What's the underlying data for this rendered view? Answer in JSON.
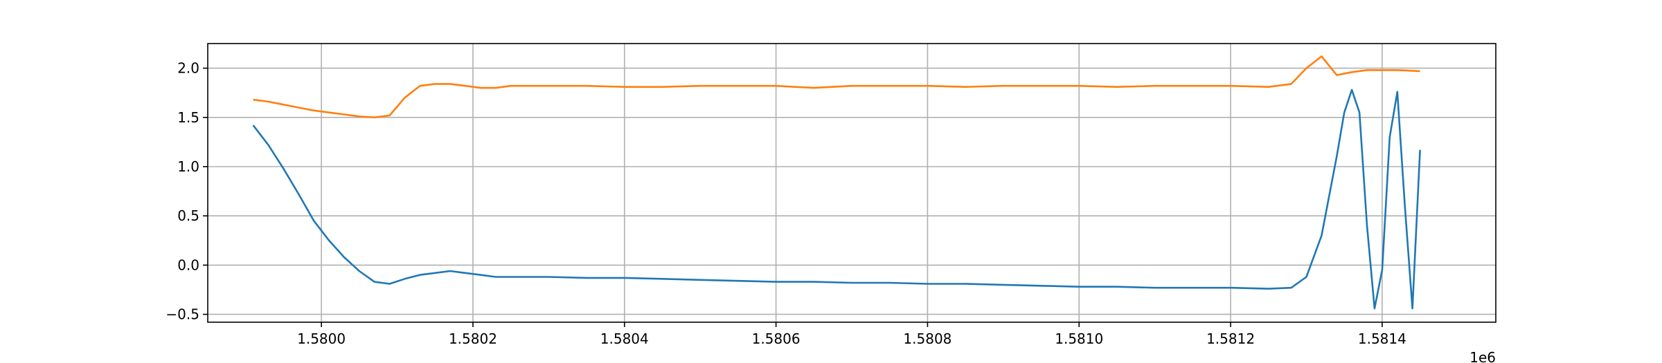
{
  "chart_data": {
    "type": "line",
    "title": "",
    "xlabel": "",
    "ylabel": "",
    "x_offset_label": "1e6",
    "xlim": [
      1.57985,
      1.58155
    ],
    "ylim": [
      -0.58,
      2.25
    ],
    "grid": true,
    "legend": "none",
    "x_ticks": [
      {
        "value": 1.58,
        "label": "1.5800"
      },
      {
        "value": 1.5802,
        "label": "1.5802"
      },
      {
        "value": 1.5804,
        "label": "1.5804"
      },
      {
        "value": 1.5806,
        "label": "1.5806"
      },
      {
        "value": 1.5808,
        "label": "1.5808"
      },
      {
        "value": 1.581,
        "label": "1.5810"
      },
      {
        "value": 1.5812,
        "label": "1.5812"
      },
      {
        "value": 1.5814,
        "label": "1.5814"
      }
    ],
    "y_ticks": [
      {
        "value": -0.5,
        "label": "−0.5"
      },
      {
        "value": 0.0,
        "label": "0.0"
      },
      {
        "value": 0.5,
        "label": "0.5"
      },
      {
        "value": 1.0,
        "label": "1.0"
      },
      {
        "value": 1.5,
        "label": "1.5"
      },
      {
        "value": 2.0,
        "label": "2.0"
      }
    ],
    "series": [
      {
        "color": "#1f77b4",
        "x": [
          1.57991,
          1.57993,
          1.57995,
          1.57997,
          1.57999,
          1.58001,
          1.58003,
          1.58005,
          1.58007,
          1.58009,
          1.58011,
          1.58013,
          1.58015,
          1.58017,
          1.58019,
          1.58021,
          1.58023,
          1.58025,
          1.5803,
          1.58035,
          1.5804,
          1.58045,
          1.5805,
          1.58055,
          1.5806,
          1.58065,
          1.5807,
          1.58075,
          1.5808,
          1.58085,
          1.5809,
          1.58095,
          1.581,
          1.58105,
          1.5811,
          1.58115,
          1.5812,
          1.58125,
          1.58128,
          1.5813,
          1.58132,
          1.58134,
          1.58135,
          1.58136,
          1.58137,
          1.58138,
          1.58139,
          1.5814,
          1.58141,
          1.58142,
          1.58143,
          1.58144,
          1.58145
        ],
        "y": [
          1.42,
          1.22,
          0.98,
          0.72,
          0.45,
          0.25,
          0.08,
          -0.06,
          -0.17,
          -0.19,
          -0.14,
          -0.1,
          -0.08,
          -0.06,
          -0.08,
          -0.1,
          -0.12,
          -0.12,
          -0.12,
          -0.13,
          -0.13,
          -0.14,
          -0.15,
          -0.16,
          -0.17,
          -0.17,
          -0.18,
          -0.18,
          -0.19,
          -0.19,
          -0.2,
          -0.21,
          -0.22,
          -0.22,
          -0.23,
          -0.23,
          -0.23,
          -0.24,
          -0.23,
          -0.12,
          0.3,
          1.1,
          1.55,
          1.78,
          1.55,
          0.4,
          -0.44,
          -0.05,
          1.3,
          1.76,
          0.6,
          -0.44,
          1.17
        ]
      },
      {
        "color": "#ff7f0e",
        "x": [
          1.57991,
          1.57993,
          1.57995,
          1.57997,
          1.57999,
          1.58001,
          1.58003,
          1.58005,
          1.58007,
          1.58009,
          1.58011,
          1.58013,
          1.58015,
          1.58017,
          1.58019,
          1.58021,
          1.58023,
          1.58025,
          1.5803,
          1.58035,
          1.5804,
          1.58045,
          1.5805,
          1.58055,
          1.5806,
          1.58065,
          1.5807,
          1.58075,
          1.5808,
          1.58085,
          1.5809,
          1.58095,
          1.581,
          1.58105,
          1.5811,
          1.58115,
          1.5812,
          1.58125,
          1.58128,
          1.5813,
          1.58132,
          1.58134,
          1.58136,
          1.58138,
          1.5814,
          1.58142,
          1.58145
        ],
        "y": [
          1.68,
          1.66,
          1.63,
          1.6,
          1.57,
          1.55,
          1.53,
          1.51,
          1.5,
          1.52,
          1.7,
          1.82,
          1.84,
          1.84,
          1.82,
          1.8,
          1.8,
          1.82,
          1.82,
          1.82,
          1.81,
          1.81,
          1.82,
          1.82,
          1.82,
          1.8,
          1.82,
          1.82,
          1.82,
          1.81,
          1.82,
          1.82,
          1.82,
          1.81,
          1.82,
          1.82,
          1.82,
          1.81,
          1.84,
          2.0,
          2.12,
          1.93,
          1.96,
          1.98,
          1.98,
          1.98,
          1.97
        ]
      }
    ]
  }
}
